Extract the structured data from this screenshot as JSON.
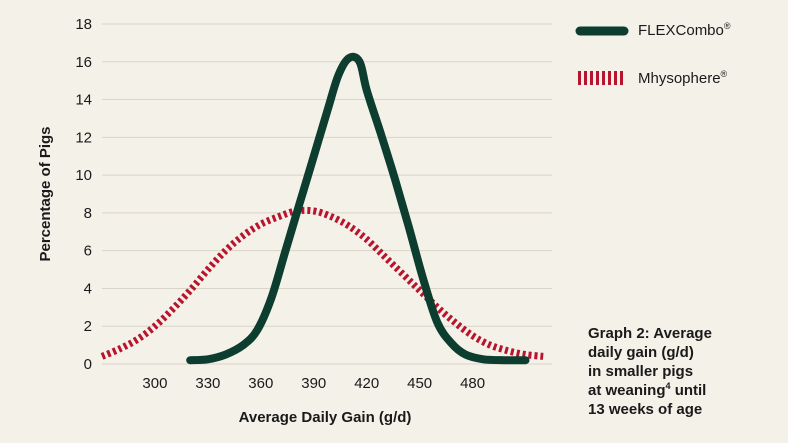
{
  "chart_data": {
    "type": "line",
    "title": "",
    "xlabel": "Average Daily Gain (g/d)",
    "ylabel": "Percentage of Pigs",
    "xlim": [
      270,
      525
    ],
    "ylim": [
      0,
      18
    ],
    "x_ticks": [
      300,
      330,
      360,
      390,
      420,
      450,
      480
    ],
    "y_ticks": [
      0,
      2,
      4,
      6,
      8,
      10,
      12,
      14,
      16,
      18
    ],
    "grid": "horizontal",
    "legend_position": "top-right",
    "series": [
      {
        "name": "FLEXCombo",
        "name_mark": "®",
        "color": "#0c3d2f",
        "style": "solid",
        "points": [
          [
            320,
            0.2
          ],
          [
            330,
            0.25
          ],
          [
            340,
            0.5
          ],
          [
            350,
            1.0
          ],
          [
            358,
            1.8
          ],
          [
            366,
            3.5
          ],
          [
            374,
            6.0
          ],
          [
            382,
            8.5
          ],
          [
            390,
            11.0
          ],
          [
            398,
            13.5
          ],
          [
            404,
            15.3
          ],
          [
            410,
            16.2
          ],
          [
            416,
            16.0
          ],
          [
            420,
            14.5
          ],
          [
            428,
            12.2
          ],
          [
            436,
            9.8
          ],
          [
            444,
            7.2
          ],
          [
            452,
            4.5
          ],
          [
            460,
            2.2
          ],
          [
            468,
            1.1
          ],
          [
            476,
            0.5
          ],
          [
            486,
            0.25
          ],
          [
            498,
            0.2
          ],
          [
            510,
            0.2
          ]
        ]
      },
      {
        "name": "Mhysophere",
        "name_mark": "®",
        "color": "#b8142e",
        "style": "dashed",
        "points": [
          [
            270,
            0.4
          ],
          [
            280,
            0.8
          ],
          [
            290,
            1.3
          ],
          [
            300,
            2.0
          ],
          [
            310,
            2.9
          ],
          [
            320,
            3.9
          ],
          [
            330,
            5.0
          ],
          [
            340,
            6.0
          ],
          [
            350,
            6.8
          ],
          [
            360,
            7.4
          ],
          [
            370,
            7.8
          ],
          [
            380,
            8.1
          ],
          [
            390,
            8.1
          ],
          [
            400,
            7.8
          ],
          [
            410,
            7.3
          ],
          [
            420,
            6.6
          ],
          [
            430,
            5.7
          ],
          [
            440,
            4.8
          ],
          [
            450,
            3.9
          ],
          [
            460,
            3.0
          ],
          [
            470,
            2.2
          ],
          [
            480,
            1.5
          ],
          [
            490,
            1.0
          ],
          [
            500,
            0.7
          ],
          [
            510,
            0.5
          ],
          [
            520,
            0.4
          ]
        ]
      }
    ]
  },
  "caption": {
    "line1": "Graph 2: Average",
    "line2": "daily gain (g/d)",
    "line3": "in smaller pigs",
    "line4a": "at weaning",
    "line4sup": "4",
    "line4b": " until",
    "line5": "13 weeks of age"
  }
}
